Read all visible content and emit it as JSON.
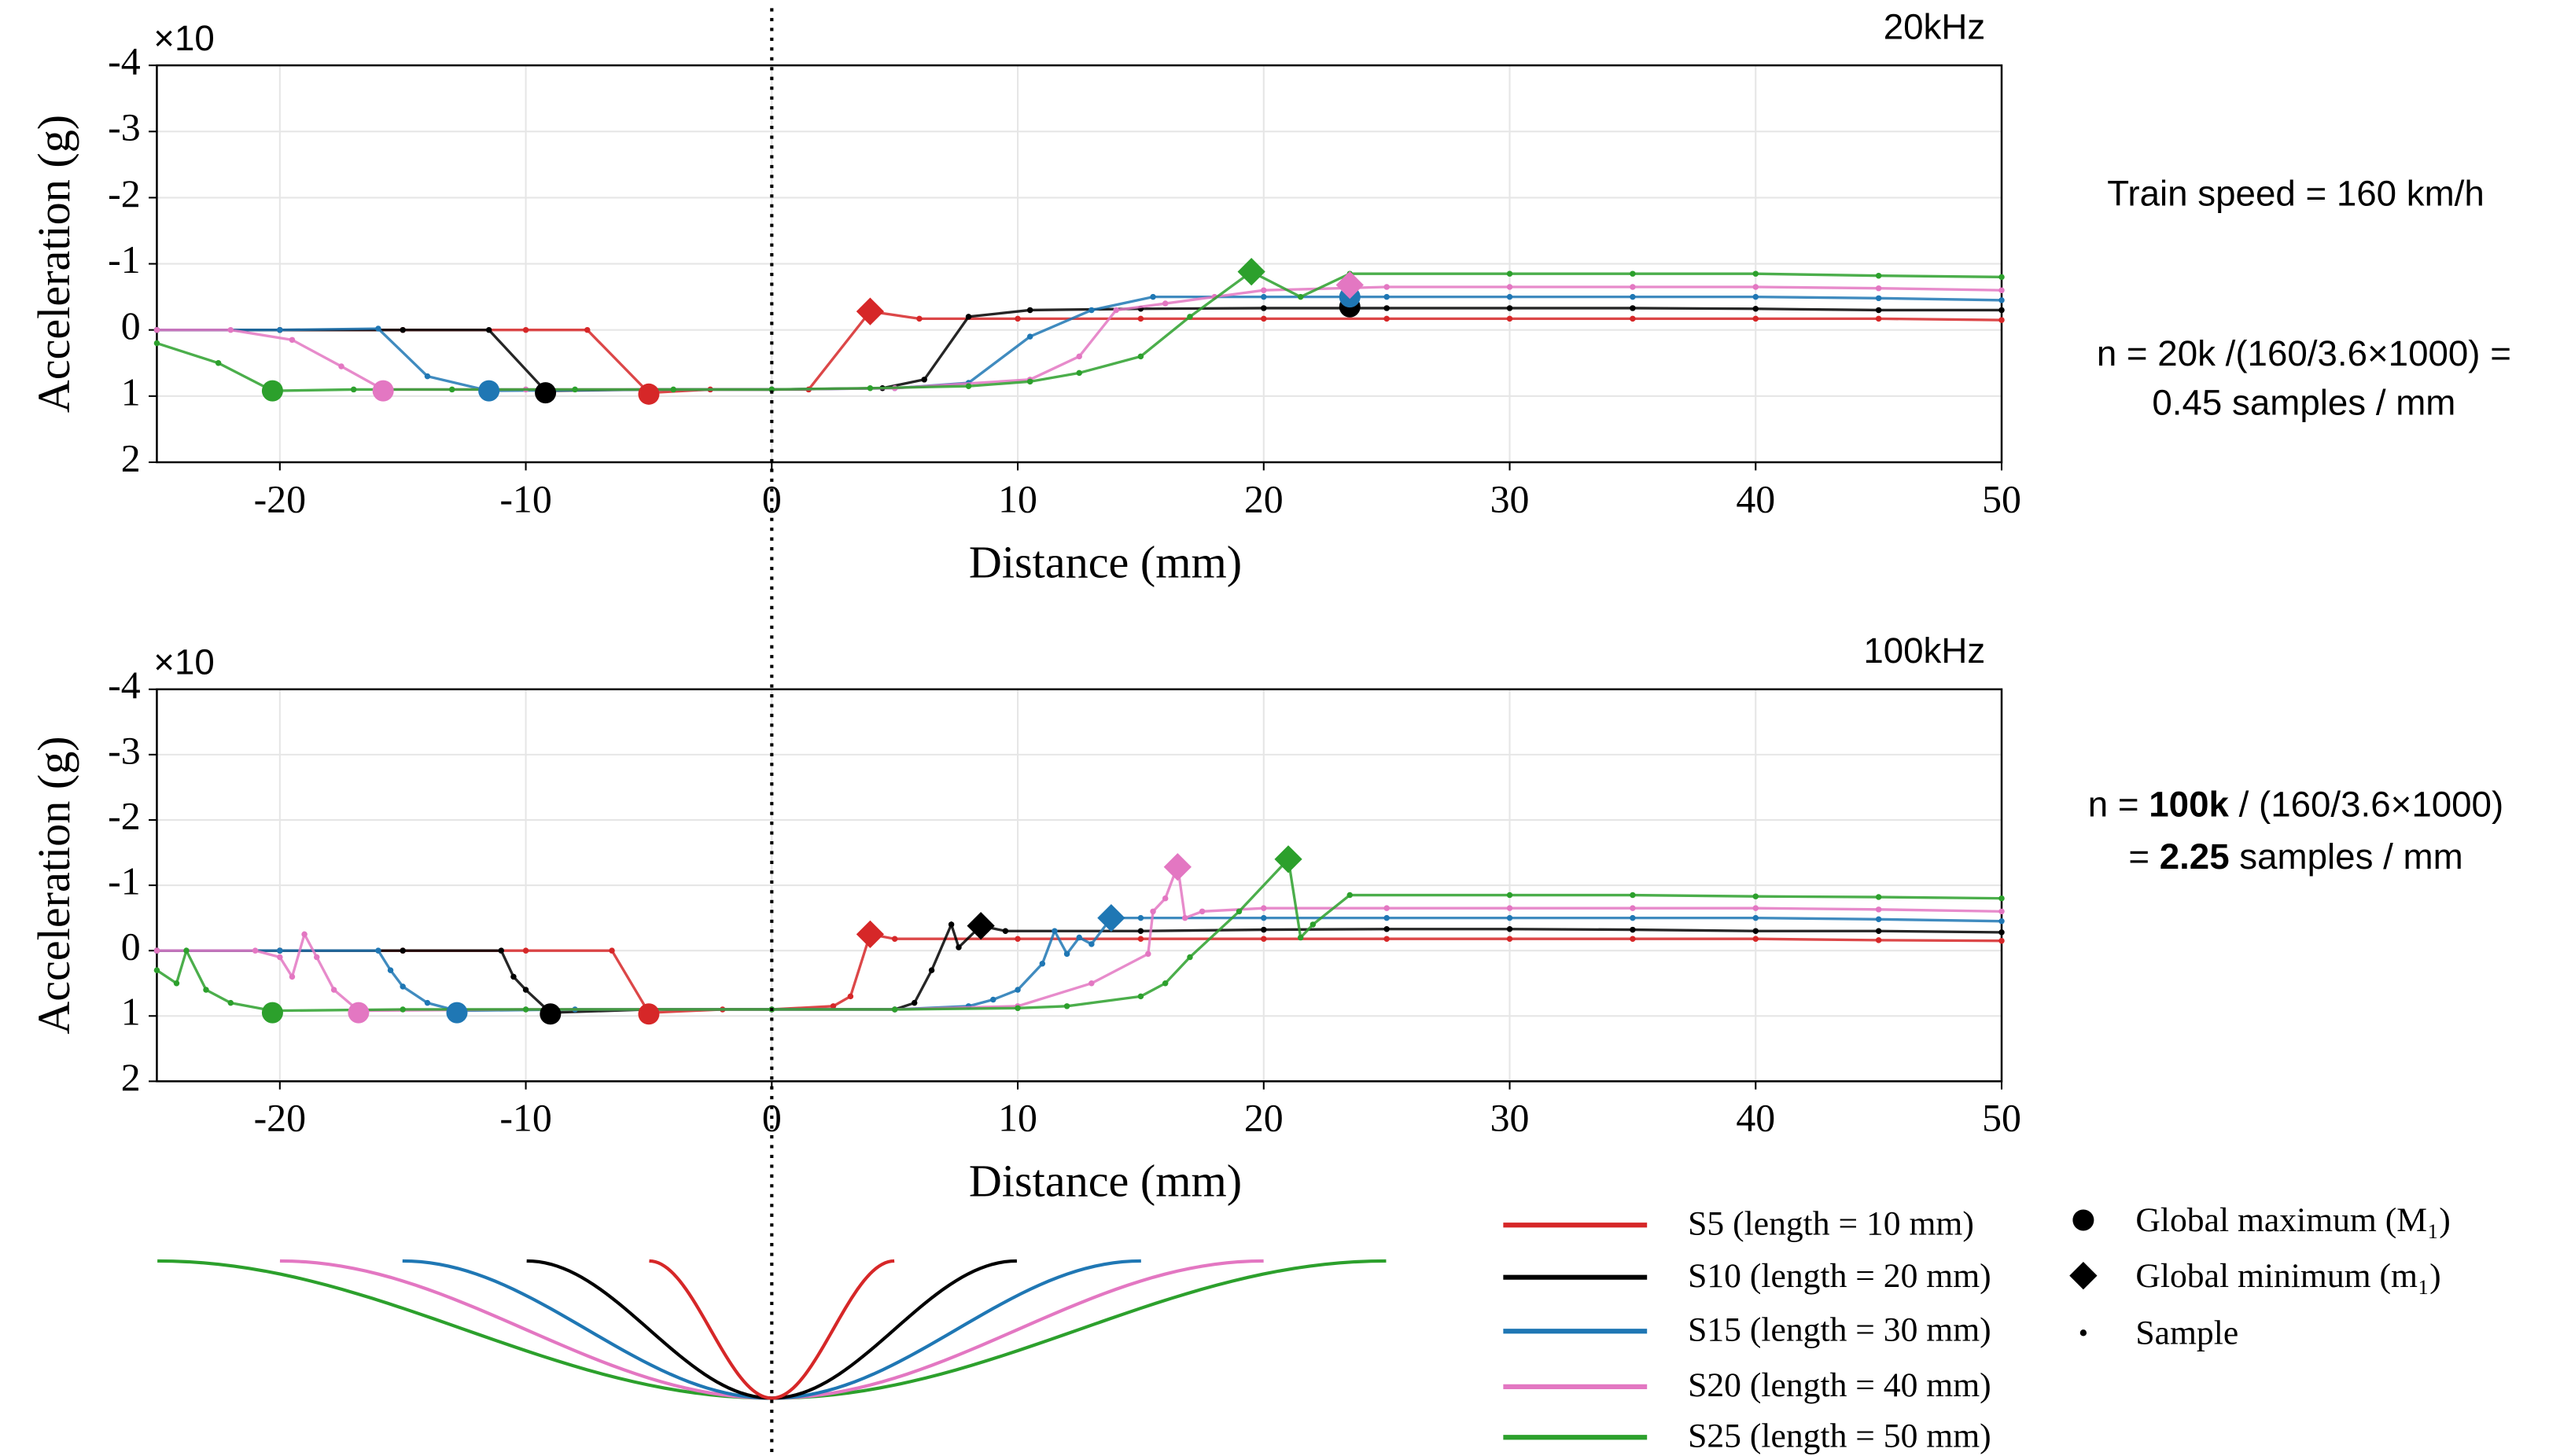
{
  "chart_data": [
    {
      "type": "line",
      "title": "20kHz",
      "y_multiplier": "×10",
      "xlabel": "Distance (mm)",
      "ylabel": "Acceleration (g)",
      "xlim": [
        -25,
        50
      ],
      "xticks": [
        -20,
        -10,
        0,
        10,
        20,
        30,
        40,
        50
      ],
      "ylim": [
        -4,
        2
      ],
      "yticks": [
        -4,
        -3,
        -2,
        -1,
        0,
        1,
        2
      ],
      "y_inverted": true,
      "grid": true,
      "series": [
        {
          "color": "#d62728",
          "x": [
            -25,
            -20,
            -15,
            -10,
            -7.5,
            -5,
            -2.5,
            0,
            1.5,
            4,
            6,
            10,
            15,
            20,
            25,
            30,
            35,
            40,
            45,
            50
          ],
          "values": [
            0,
            0,
            0,
            0,
            0,
            0.95,
            0.9,
            0.9,
            0.9,
            -0.28,
            -0.17,
            -0.17,
            -0.17,
            -0.17,
            -0.17,
            -0.17,
            -0.17,
            -0.17,
            -0.17,
            -0.15
          ],
          "markers": [
            {
              "shape": "circle",
              "x": -5,
              "value": 0.97
            },
            {
              "shape": "diamond",
              "x": 4,
              "value": -0.28
            }
          ]
        },
        {
          "color": "#000000",
          "x": [
            -25,
            -20,
            -15,
            -11.5,
            -9.2,
            -5,
            0,
            4.5,
            6.2,
            8,
            10.5,
            15,
            20,
            25,
            30,
            35,
            40,
            45,
            50
          ],
          "values": [
            0,
            0,
            0,
            0,
            0.92,
            0.9,
            0.9,
            0.88,
            0.75,
            -0.2,
            -0.3,
            -0.32,
            -0.33,
            -0.33,
            -0.33,
            -0.33,
            -0.32,
            -0.3,
            -0.3
          ],
          "markers": [
            {
              "shape": "circle",
              "x": -9.2,
              "value": 0.95
            },
            {
              "shape": "circle",
              "x": 23.5,
              "value": -0.35
            }
          ]
        },
        {
          "color": "#1f77b4",
          "x": [
            -25,
            -20,
            -16,
            -14,
            -11.5,
            -5,
            0,
            5,
            8,
            10.5,
            13,
            15.5,
            20,
            25,
            30,
            35,
            40,
            45,
            50
          ],
          "values": [
            0,
            0,
            -0.02,
            0.7,
            0.92,
            0.9,
            0.9,
            0.88,
            0.8,
            0.1,
            -0.3,
            -0.5,
            -0.5,
            -0.5,
            -0.5,
            -0.5,
            -0.5,
            -0.48,
            -0.45
          ],
          "markers": [
            {
              "shape": "circle",
              "x": -11.5,
              "value": 0.92
            },
            {
              "shape": "circle",
              "x": 23.5,
              "value": -0.5
            }
          ]
        },
        {
          "color": "#e377c2",
          "x": [
            -25,
            -22,
            -19.5,
            -17.5,
            -15.8,
            -10,
            -5,
            0,
            5,
            10.5,
            12.5,
            14,
            16,
            18,
            20,
            25,
            30,
            35,
            40,
            45,
            50
          ],
          "values": [
            0,
            0,
            0.15,
            0.55,
            0.9,
            0.9,
            0.9,
            0.9,
            0.88,
            0.75,
            0.4,
            -0.3,
            -0.4,
            -0.5,
            -0.6,
            -0.65,
            -0.65,
            -0.65,
            -0.65,
            -0.63,
            -0.6
          ],
          "markers": [
            {
              "shape": "circle",
              "x": -15.8,
              "value": 0.92
            },
            {
              "shape": "diamond",
              "x": 23.5,
              "value": -0.68
            }
          ]
        },
        {
          "color": "#2ca02c",
          "x": [
            -25,
            -22.5,
            -20.3,
            -17,
            -13,
            -8,
            -4,
            0,
            4,
            8,
            10.5,
            12.5,
            15,
            17,
            19.5,
            21.5,
            23.5,
            30,
            35,
            40,
            45,
            50
          ],
          "values": [
            0.2,
            0.5,
            0.92,
            0.9,
            0.9,
            0.9,
            0.9,
            0.9,
            0.88,
            0.85,
            0.78,
            0.65,
            0.4,
            -0.2,
            -0.88,
            -0.5,
            -0.85,
            -0.85,
            -0.85,
            -0.85,
            -0.82,
            -0.8
          ],
          "markers": [
            {
              "shape": "circle",
              "x": -20.3,
              "value": 0.92
            },
            {
              "shape": "diamond",
              "x": 19.5,
              "value": -0.88
            }
          ]
        }
      ]
    },
    {
      "type": "line",
      "title": "100kHz",
      "y_multiplier": "×10",
      "xlabel": "Distance (mm)",
      "ylabel": "Acceleration (g)",
      "xlim": [
        -25,
        50
      ],
      "xticks": [
        -20,
        -10,
        0,
        10,
        20,
        30,
        40,
        50
      ],
      "ylim": [
        -4,
        2
      ],
      "yticks": [
        -4,
        -3,
        -2,
        -1,
        0,
        1,
        2
      ],
      "y_inverted": true,
      "grid": true,
      "series": [
        {
          "name": "S5 (length = 10 mm)",
          "color": "#d62728",
          "x": [
            -25,
            -20,
            -15,
            -10,
            -6.5,
            -5,
            -2,
            0,
            2.5,
            3.2,
            4,
            5,
            10,
            15,
            20,
            25,
            30,
            35,
            40,
            45,
            50
          ],
          "values": [
            0,
            0,
            0,
            0,
            0,
            0.95,
            0.9,
            0.9,
            0.85,
            0.7,
            -0.25,
            -0.18,
            -0.18,
            -0.18,
            -0.18,
            -0.18,
            -0.18,
            -0.18,
            -0.18,
            -0.16,
            -0.15
          ],
          "markers": [
            {
              "shape": "circle",
              "x": -5,
              "value": 0.97
            },
            {
              "shape": "diamond",
              "x": 4,
              "value": -0.25
            }
          ]
        },
        {
          "name": "S10 (length = 20 mm)",
          "color": "#000000",
          "x": [
            -25,
            -20,
            -15,
            -11,
            -10.5,
            -10,
            -9,
            -5,
            0,
            5,
            5.8,
            6.5,
            7.3,
            7.6,
            8.5,
            9.5,
            15,
            20,
            25,
            30,
            35,
            40,
            45,
            50
          ],
          "values": [
            0,
            0,
            0,
            0,
            0.4,
            0.6,
            0.95,
            0.9,
            0.9,
            0.9,
            0.8,
            0.3,
            -0.4,
            -0.05,
            -0.38,
            -0.3,
            -0.3,
            -0.32,
            -0.33,
            -0.33,
            -0.32,
            -0.3,
            -0.3,
            -0.28
          ],
          "markers": [
            {
              "shape": "circle",
              "x": -9,
              "value": 0.97
            },
            {
              "shape": "diamond",
              "x": 8.5,
              "value": -0.38
            }
          ]
        },
        {
          "name": "S15 (length = 30 mm)",
          "color": "#1f77b4",
          "x": [
            -25,
            -20,
            -16,
            -15.5,
            -15,
            -14,
            -12.8,
            -8,
            0,
            5,
            8,
            9,
            10,
            11,
            11.5,
            12,
            12.5,
            13,
            13.8,
            15,
            20,
            25,
            30,
            35,
            40,
            45,
            50
          ],
          "values": [
            0,
            0,
            0,
            0.3,
            0.55,
            0.8,
            0.92,
            0.9,
            0.9,
            0.9,
            0.85,
            0.75,
            0.6,
            0.2,
            -0.3,
            0.05,
            -0.2,
            -0.1,
            -0.5,
            -0.5,
            -0.5,
            -0.5,
            -0.5,
            -0.5,
            -0.5,
            -0.48,
            -0.45
          ],
          "markers": [
            {
              "shape": "circle",
              "x": -12.8,
              "value": 0.95
            },
            {
              "shape": "diamond",
              "x": 13.8,
              "value": -0.5
            }
          ]
        },
        {
          "name": "S20 (length = 40 mm)",
          "color": "#e377c2",
          "x": [
            -25,
            -21,
            -20,
            -19.5,
            -19,
            -18.5,
            -17.8,
            -16.8,
            -10,
            0,
            5,
            10,
            13,
            15.3,
            15.5,
            16,
            16.5,
            16.8,
            17.5,
            20,
            25,
            30,
            35,
            40,
            45,
            50
          ],
          "values": [
            0,
            0,
            0.1,
            0.4,
            -0.25,
            0.1,
            0.6,
            0.92,
            0.9,
            0.9,
            0.9,
            0.85,
            0.5,
            0.05,
            -0.6,
            -0.8,
            -1.3,
            -0.5,
            -0.6,
            -0.65,
            -0.65,
            -0.65,
            -0.65,
            -0.65,
            -0.63,
            -0.6
          ],
          "markers": [
            {
              "shape": "circle",
              "x": -16.8,
              "value": 0.95
            },
            {
              "shape": "diamond",
              "x": 16.5,
              "value": -1.28
            }
          ]
        },
        {
          "name": "S25 (length = 50 mm)",
          "color": "#2ca02c",
          "x": [
            -25,
            -24.2,
            -23.8,
            -23,
            -22,
            -20.3,
            -15,
            -10,
            0,
            5,
            10,
            12,
            15,
            16,
            17,
            19,
            21,
            21.5,
            22,
            23.5,
            30,
            35,
            40,
            45,
            50
          ],
          "values": [
            0.3,
            0.5,
            0,
            0.6,
            0.8,
            0.92,
            0.9,
            0.9,
            0.9,
            0.9,
            0.88,
            0.85,
            0.7,
            0.5,
            0.1,
            -0.6,
            -1.4,
            -0.2,
            -0.4,
            -0.85,
            -0.85,
            -0.85,
            -0.83,
            -0.82,
            -0.8
          ],
          "markers": [
            {
              "shape": "circle",
              "x": -20.3,
              "value": 0.95
            },
            {
              "shape": "diamond",
              "x": 21,
              "value": -1.4
            }
          ]
        }
      ]
    }
  ],
  "notes": {
    "speed": "Train speed = 160 km/h",
    "n20": [
      "n = 20k /(160/3.6×1000) =",
      "0.45 samples / mm"
    ],
    "n100": [
      [
        "n = ",
        "100k",
        " / (160/3.6×1000)"
      ],
      [
        "= ",
        "2.25",
        " samples / mm"
      ]
    ]
  },
  "marker_legend": [
    "Global maximum (M₁)",
    "Global minimum (m₁)",
    "Sample"
  ]
}
